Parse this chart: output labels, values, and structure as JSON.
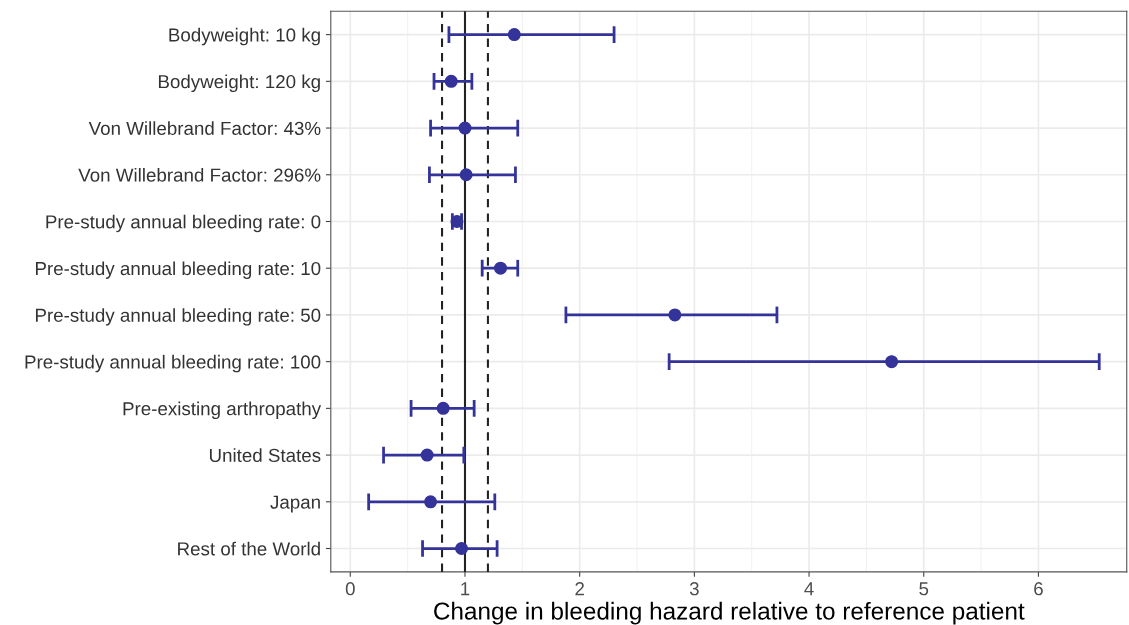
{
  "chart_data": {
    "type": "scatter",
    "orientation": "horizontal",
    "xlabel": "Change in bleeding hazard relative to reference patient",
    "categories": [
      "Bodyweight: 10 kg",
      "Bodyweight: 120 kg",
      "Von Willebrand Factor: 43%",
      "Von Willebrand Factor: 296%",
      "Pre-study annual bleeding rate: 0",
      "Pre-study annual bleeding rate: 10",
      "Pre-study annual bleeding rate: 50",
      "Pre-study annual bleeding rate: 100",
      "Pre-existing arthropathy",
      "United States",
      "Japan",
      "Rest of the World"
    ],
    "series": [
      {
        "color": "#33339a",
        "values": [
          1.43,
          0.88,
          1.0,
          1.01,
          0.93,
          1.31,
          2.83,
          4.72,
          0.81,
          0.67,
          0.7,
          0.97
        ],
        "errors": [
          [
            0.86,
            2.3
          ],
          [
            0.73,
            1.06
          ],
          [
            0.7,
            1.46
          ],
          [
            0.69,
            1.44
          ],
          [
            0.89,
            0.97
          ],
          [
            1.15,
            1.46
          ],
          [
            1.88,
            3.72
          ],
          [
            2.78,
            6.53
          ],
          [
            0.53,
            1.08
          ],
          [
            0.29,
            0.99
          ],
          [
            0.16,
            1.26
          ],
          [
            0.63,
            1.28
          ]
        ]
      }
    ],
    "xlim": [
      -0.17,
      6.77
    ],
    "xticks": [
      0,
      1,
      2,
      3,
      4,
      5,
      6
    ],
    "ref_lines": [
      {
        "axis": "x",
        "value": 0.8,
        "color": "#222222",
        "line_style": "dashed"
      },
      {
        "axis": "x",
        "value": 1,
        "color": "#222222",
        "line_style": "solid"
      },
      {
        "axis": "x",
        "value": 1.2,
        "color": "#222222",
        "line_style": "dashed"
      }
    ],
    "grid": true,
    "marker": "circle"
  }
}
